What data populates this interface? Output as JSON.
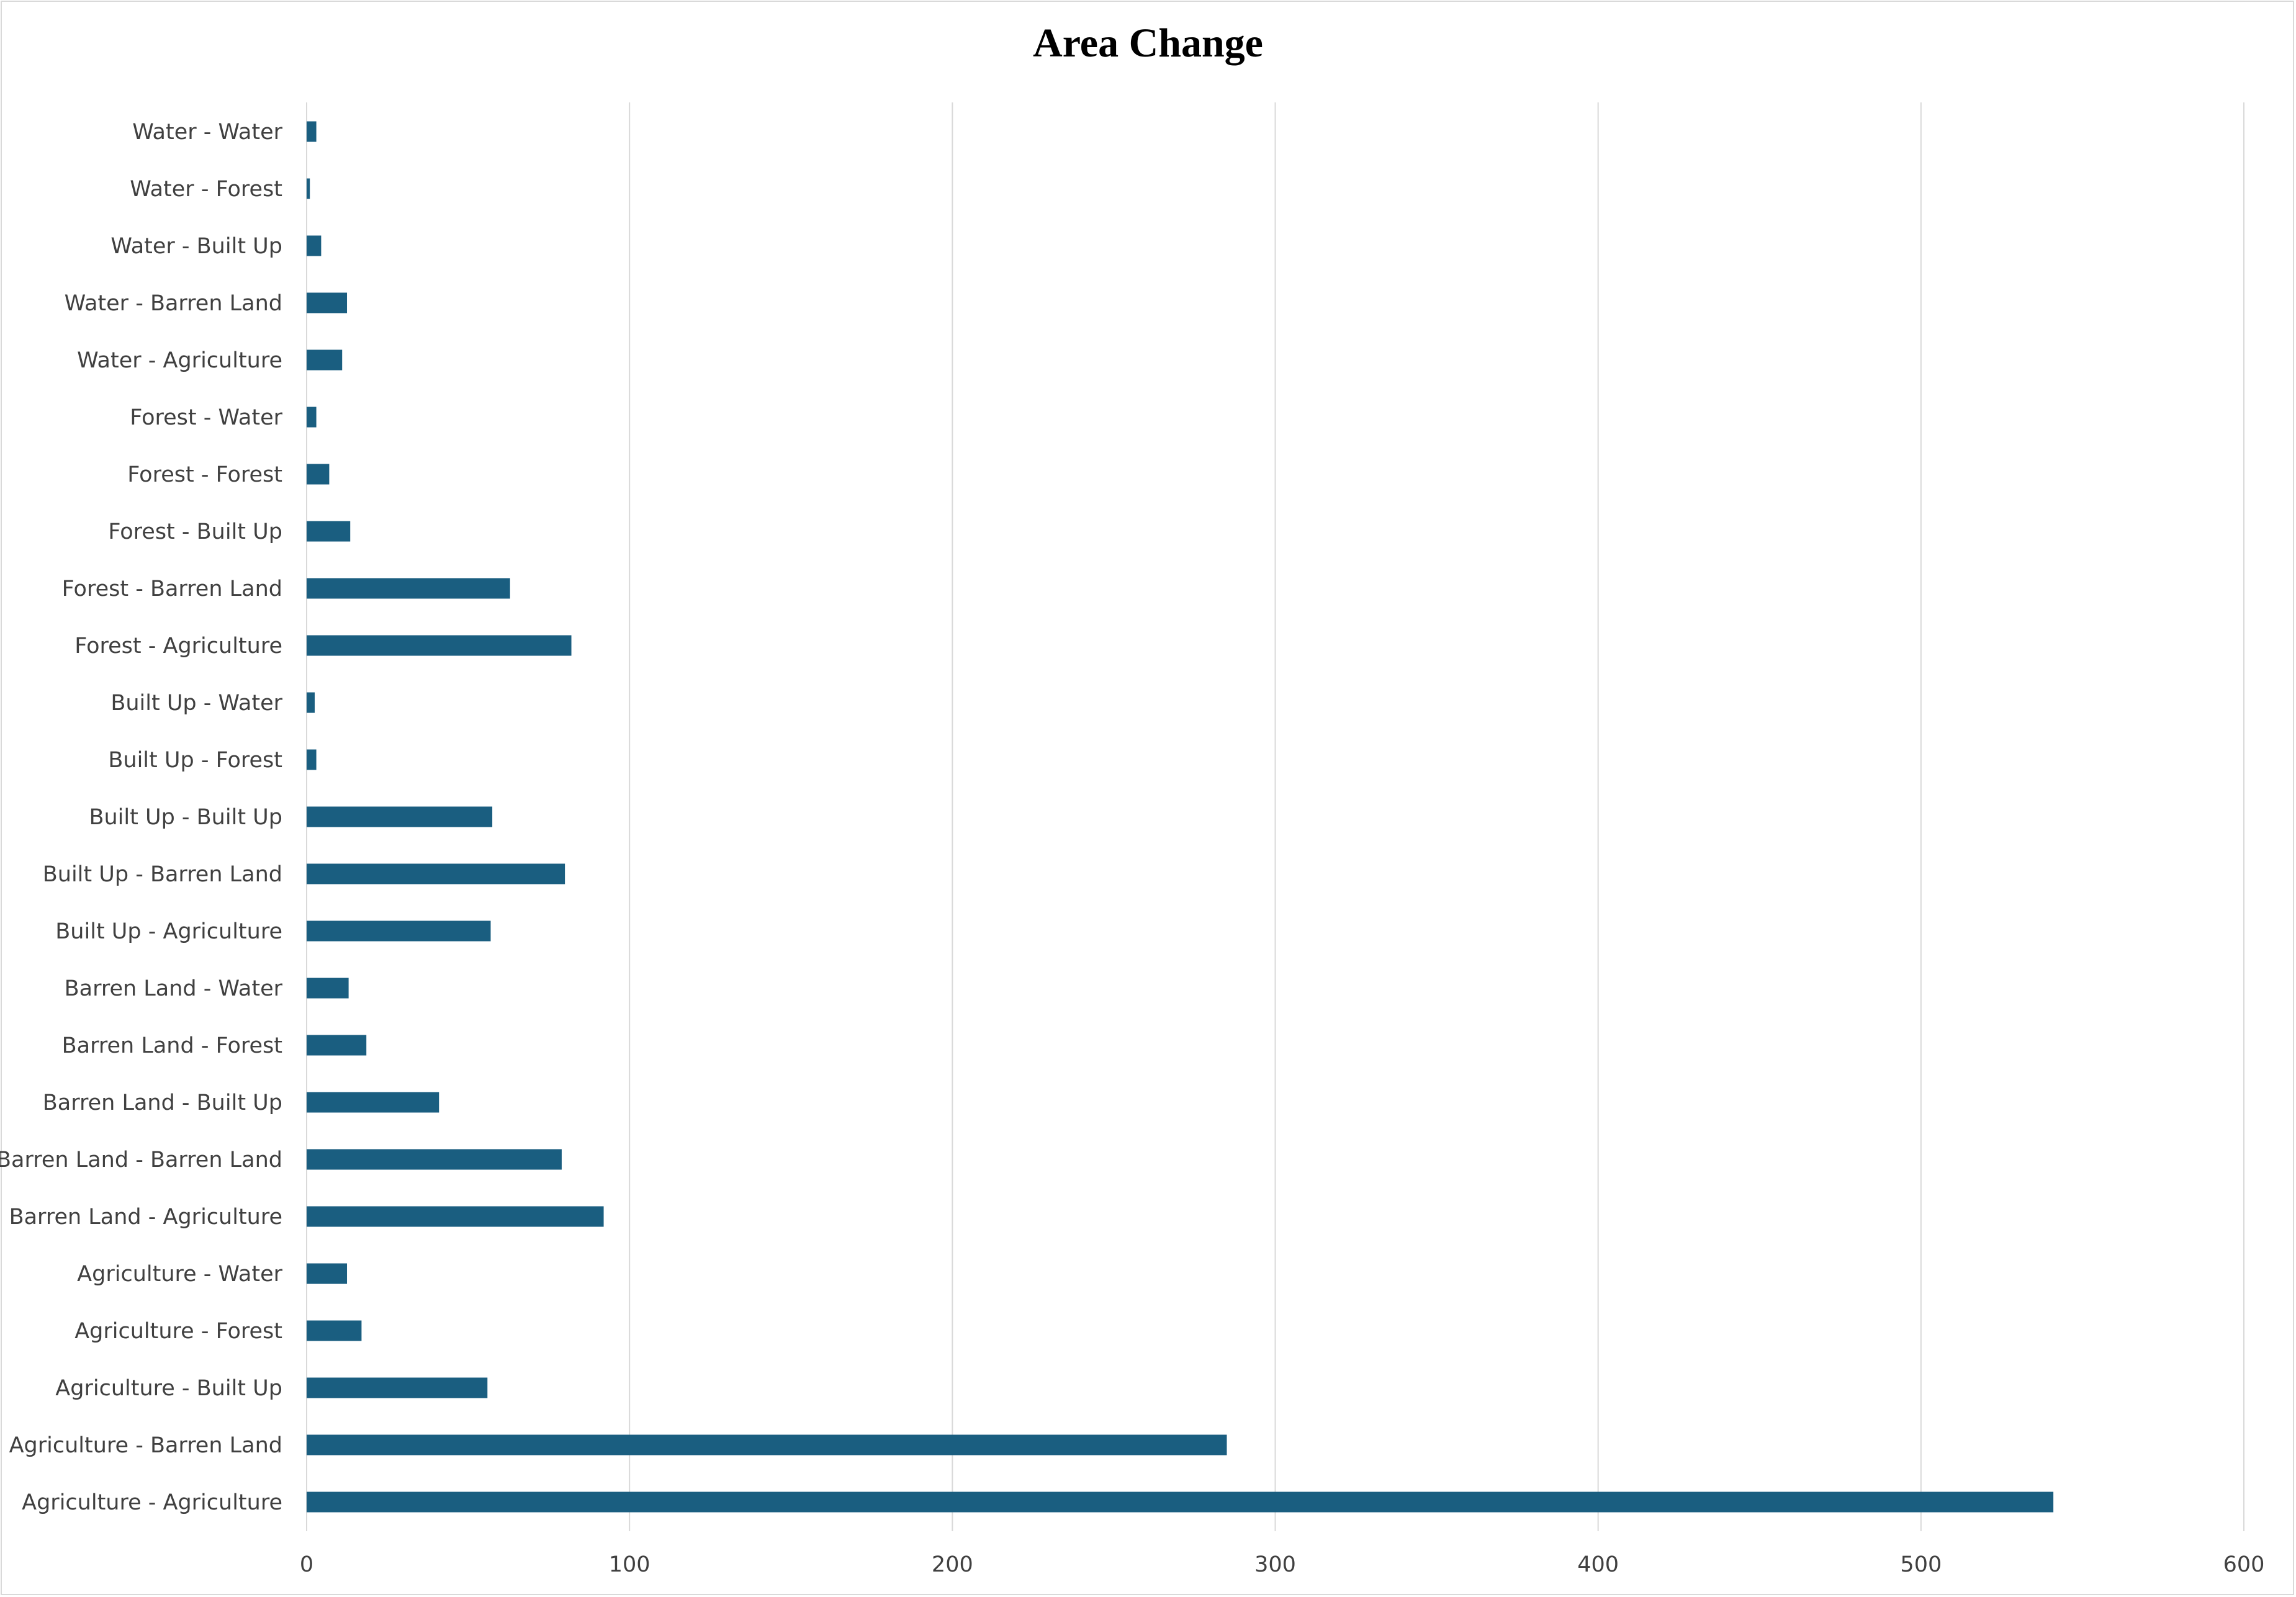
{
  "chart_data": {
    "type": "bar",
    "orientation": "horizontal",
    "title": "Area Change",
    "xlabel": "",
    "ylabel": "",
    "xlim": [
      0,
      600
    ],
    "xticks": [
      "0",
      "100",
      "200",
      "300",
      "400",
      "500",
      "600"
    ],
    "grid": "vertical",
    "bar_color": "#1a5e80",
    "grid_color": "#d9d9d9",
    "categories": [
      "Agriculture - Agriculture",
      "Agriculture - Barren Land",
      "Agriculture - Built Up",
      "Agriculture - Forest",
      "Agriculture - Water",
      "Barren Land - Agriculture",
      "Barren Land - Barren Land",
      "Barren Land - Built Up",
      "Barren Land - Forest",
      "Barren Land - Water",
      "Built Up - Agriculture",
      "Built Up - Barren Land",
      "Built Up - Built Up",
      "Built Up - Forest",
      "Built Up - Water",
      "Forest - Agriculture",
      "Forest - Barren Land",
      "Forest - Built Up",
      "Forest - Forest",
      "Forest - Water",
      "Water - Agriculture",
      "Water - Barren Land",
      "Water - Built Up",
      "Water - Forest",
      "Water - Water"
    ],
    "values": [
      541,
      285,
      56,
      17,
      12.5,
      92,
      79,
      41,
      18.5,
      13,
      57,
      80,
      57.5,
      3,
      2.5,
      82,
      63,
      13.5,
      7,
      3,
      11,
      12.5,
      4.5,
      1,
      3
    ]
  }
}
